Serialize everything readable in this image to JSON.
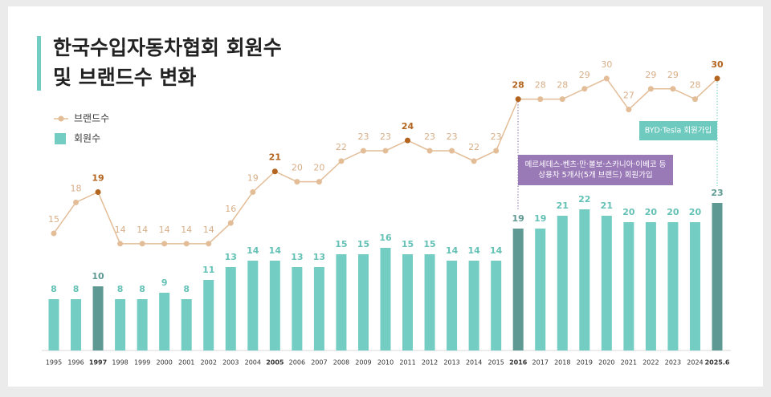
{
  "chart_data": {
    "type": "bar-line",
    "title": [
      "한국수입자동차협회 회원수",
      "및 브랜드수 변화"
    ],
    "categories": [
      "1995",
      "1996",
      "1997",
      "1998",
      "1999",
      "2000",
      "2001",
      "2002",
      "2003",
      "2004",
      "2005",
      "2006",
      "2007",
      "2008",
      "2009",
      "2010",
      "2011",
      "2012",
      "2013",
      "2014",
      "2015",
      "2016",
      "2017",
      "2018",
      "2019",
      "2020",
      "2021",
      "2022",
      "2023",
      "2024",
      "2025.6"
    ],
    "bold_categories": [
      2,
      10,
      21,
      30
    ],
    "series": [
      {
        "name": "브랜드수",
        "type": "line",
        "color": "#e3bd98",
        "label_color": "#d8ae88",
        "highlight_color": "#b3641f",
        "highlight": [
          2,
          10,
          16,
          21,
          30
        ],
        "values": [
          15,
          18,
          19,
          14,
          14,
          14,
          14,
          14,
          16,
          19,
          21,
          20,
          20,
          22,
          23,
          23,
          24,
          23,
          23,
          22,
          23,
          28,
          28,
          28,
          29,
          30,
          27,
          29,
          29,
          28,
          30
        ]
      },
      {
        "name": "회원수",
        "type": "bar",
        "color": "#73cdc2",
        "label_color": "#64c1b5",
        "highlight_color": "#5e9a93",
        "highlight": [
          2,
          21,
          30
        ],
        "values": [
          8,
          8,
          10,
          8,
          8,
          9,
          8,
          11,
          13,
          14,
          14,
          13,
          13,
          15,
          15,
          16,
          15,
          15,
          14,
          14,
          14,
          19,
          19,
          21,
          22,
          21,
          20,
          20,
          20,
          20,
          23
        ]
      }
    ],
    "annotations": [
      {
        "lines": [
          "메르세데스-벤츠·만·볼보·스카니아·이베코 등",
          "상용차 5개사(5개 브랜드)  회원가입"
        ],
        "color": "#9a79b7"
      },
      {
        "lines": [
          "BYD·Tesla 회원가입"
        ],
        "color": "#6ec9be"
      }
    ]
  }
}
